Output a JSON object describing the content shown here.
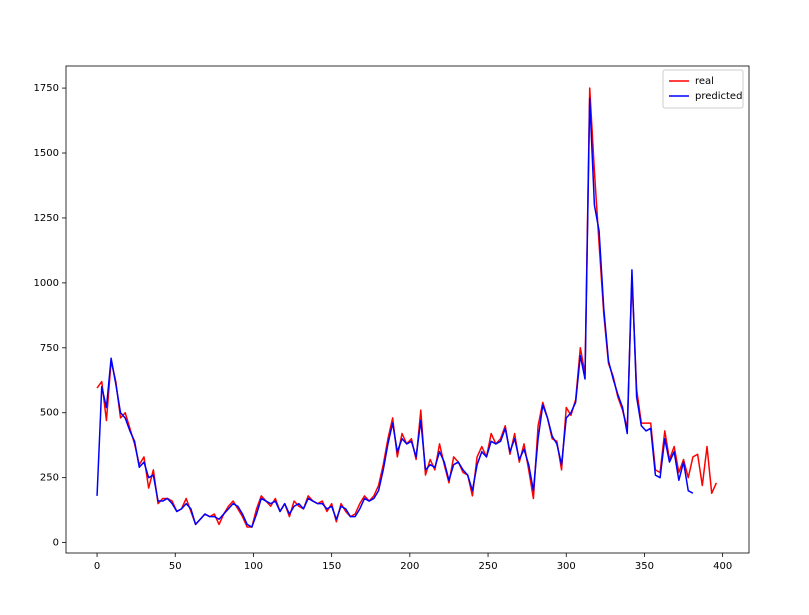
{
  "chart_data": {
    "type": "line",
    "x": [
      0,
      3,
      6,
      9,
      12,
      15,
      18,
      21,
      24,
      27,
      30,
      33,
      36,
      39,
      42,
      45,
      48,
      51,
      54,
      57,
      60,
      63,
      66,
      69,
      72,
      75,
      78,
      81,
      84,
      87,
      90,
      93,
      96,
      99,
      102,
      105,
      108,
      111,
      114,
      117,
      120,
      123,
      126,
      129,
      132,
      135,
      138,
      141,
      144,
      147,
      150,
      153,
      156,
      159,
      162,
      165,
      168,
      171,
      174,
      177,
      180,
      183,
      186,
      189,
      192,
      195,
      198,
      201,
      204,
      207,
      210,
      213,
      216,
      219,
      222,
      225,
      228,
      231,
      234,
      237,
      240,
      243,
      246,
      249,
      252,
      255,
      258,
      261,
      264,
      267,
      270,
      273,
      276,
      279,
      282,
      285,
      288,
      291,
      294,
      297,
      300,
      303,
      306,
      309,
      312,
      315,
      318,
      321,
      324,
      327,
      330,
      333,
      336,
      339,
      342,
      345,
      348,
      351,
      354,
      357,
      360,
      363,
      366,
      369,
      372,
      375,
      378,
      381,
      384,
      387,
      390,
      393,
      396
    ],
    "series": [
      {
        "name": "real",
        "color": "#ff0000",
        "values": [
          595,
          620,
          470,
          700,
          620,
          480,
          500,
          440,
          380,
          300,
          330,
          210,
          280,
          150,
          170,
          170,
          160,
          120,
          130,
          170,
          120,
          70,
          90,
          110,
          100,
          110,
          70,
          110,
          140,
          160,
          130,
          100,
          60,
          60,
          130,
          180,
          160,
          140,
          170,
          120,
          150,
          100,
          160,
          140,
          130,
          180,
          160,
          150,
          160,
          120,
          150,
          80,
          150,
          120,
          100,
          110,
          150,
          180,
          160,
          180,
          220,
          300,
          400,
          480,
          330,
          420,
          380,
          400,
          320,
          510,
          260,
          320,
          280,
          380,
          300,
          230,
          330,
          310,
          270,
          260,
          180,
          330,
          370,
          330,
          420,
          380,
          400,
          450,
          340,
          420,
          310,
          380,
          280,
          170,
          450,
          540,
          480,
          400,
          390,
          280,
          520,
          490,
          550,
          750,
          650,
          1750,
          1430,
          1150,
          880,
          690,
          640,
          560,
          510,
          440,
          1020,
          590,
          460,
          460,
          460,
          280,
          270,
          430,
          320,
          370,
          270,
          320,
          250,
          330,
          340,
          220,
          370,
          190,
          230
        ]
      },
      {
        "name": "predicted",
        "color": "#0000ff",
        "values": [
          180,
          600,
          520,
          710,
          610,
          500,
          480,
          430,
          390,
          290,
          310,
          250,
          260,
          160,
          160,
          170,
          150,
          120,
          130,
          150,
          130,
          70,
          90,
          110,
          100,
          100,
          90,
          110,
          130,
          150,
          140,
          110,
          70,
          60,
          110,
          170,
          160,
          150,
          160,
          120,
          150,
          110,
          140,
          150,
          130,
          170,
          160,
          150,
          150,
          130,
          140,
          90,
          140,
          130,
          100,
          100,
          130,
          170,
          160,
          170,
          200,
          280,
          380,
          460,
          350,
          400,
          380,
          390,
          330,
          470,
          280,
          300,
          290,
          350,
          310,
          240,
          300,
          310,
          280,
          260,
          200,
          300,
          350,
          330,
          390,
          380,
          390,
          440,
          350,
          400,
          320,
          360,
          300,
          200,
          400,
          530,
          480,
          410,
          380,
          300,
          480,
          500,
          540,
          720,
          630,
          1710,
          1300,
          1200,
          900,
          700,
          630,
          570,
          520,
          420,
          1050,
          560,
          450,
          430,
          440,
          260,
          250,
          400,
          310,
          350,
          240,
          310,
          200,
          190,
          null,
          null,
          null,
          null,
          null
        ]
      }
    ],
    "xlim": [
      -19.85,
      416.85
    ],
    "ylim": [
      -40,
      1835
    ],
    "xticks": [
      0,
      50,
      100,
      150,
      200,
      250,
      300,
      350,
      400
    ],
    "yticks": [
      0,
      250,
      500,
      750,
      1000,
      1250,
      1500,
      1750
    ],
    "legend": "upper right"
  }
}
